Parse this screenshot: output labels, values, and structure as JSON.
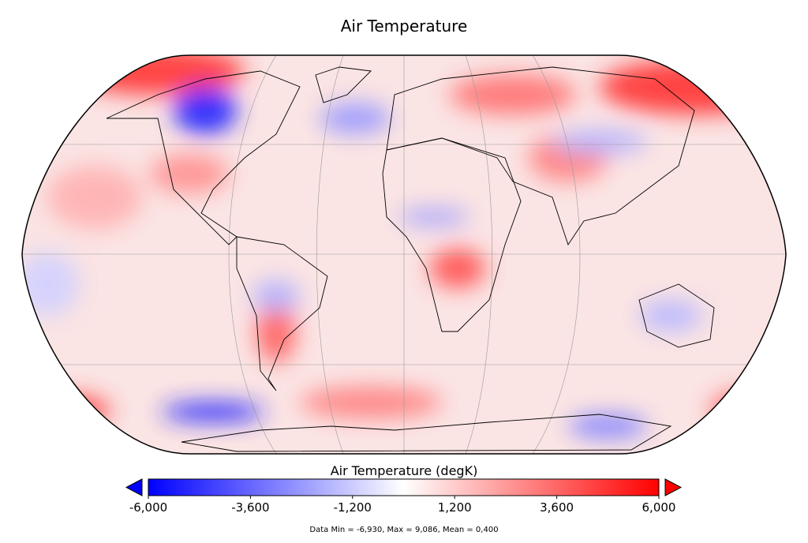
{
  "title": "Air Temperature",
  "colorbar": {
    "label": "Air Temperature (degK)",
    "range": [
      -6000,
      6000
    ],
    "low_color": "#0000ff",
    "mid_color": "#ffffff",
    "high_color": "#ff0000",
    "ticks": [
      {
        "value": -6000,
        "label": "-6,000"
      },
      {
        "value": -3600,
        "label": "-3,600"
      },
      {
        "value": -1200,
        "label": "-1,200"
      },
      {
        "value": 1200,
        "label": "1,200"
      },
      {
        "value": 3600,
        "label": "3,600"
      },
      {
        "value": 6000,
        "label": "6,000"
      }
    ]
  },
  "footer": "Data Min = -6,930, Max = 9,086, Mean = 0,400"
}
